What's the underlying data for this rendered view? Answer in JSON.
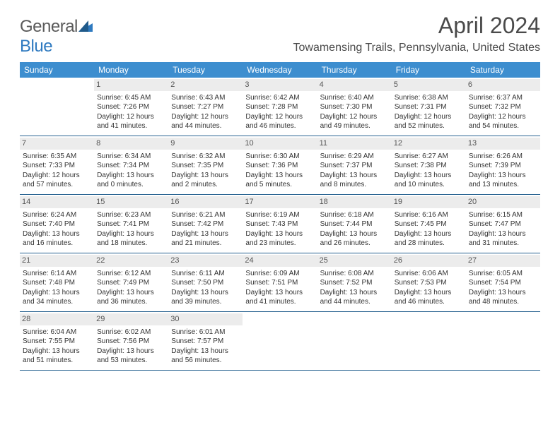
{
  "brand": {
    "word1": "General",
    "word2": "Blue"
  },
  "title": "April 2024",
  "location": "Towamensing Trails, Pennsylvania, United States",
  "colors": {
    "header_bg": "#3d8ecf",
    "header_text": "#ffffff",
    "row_divider": "#24608f",
    "daynum_bg": "#ececec",
    "text": "#333333",
    "brand_blue": "#2f7ac0"
  },
  "weekdays": [
    "Sunday",
    "Monday",
    "Tuesday",
    "Wednesday",
    "Thursday",
    "Friday",
    "Saturday"
  ],
  "weeks": [
    [
      {
        "n": "",
        "sr": "",
        "ss": "",
        "dl": ""
      },
      {
        "n": "1",
        "sr": "Sunrise: 6:45 AM",
        "ss": "Sunset: 7:26 PM",
        "dl": "Daylight: 12 hours and 41 minutes."
      },
      {
        "n": "2",
        "sr": "Sunrise: 6:43 AM",
        "ss": "Sunset: 7:27 PM",
        "dl": "Daylight: 12 hours and 44 minutes."
      },
      {
        "n": "3",
        "sr": "Sunrise: 6:42 AM",
        "ss": "Sunset: 7:28 PM",
        "dl": "Daylight: 12 hours and 46 minutes."
      },
      {
        "n": "4",
        "sr": "Sunrise: 6:40 AM",
        "ss": "Sunset: 7:30 PM",
        "dl": "Daylight: 12 hours and 49 minutes."
      },
      {
        "n": "5",
        "sr": "Sunrise: 6:38 AM",
        "ss": "Sunset: 7:31 PM",
        "dl": "Daylight: 12 hours and 52 minutes."
      },
      {
        "n": "6",
        "sr": "Sunrise: 6:37 AM",
        "ss": "Sunset: 7:32 PM",
        "dl": "Daylight: 12 hours and 54 minutes."
      }
    ],
    [
      {
        "n": "7",
        "sr": "Sunrise: 6:35 AM",
        "ss": "Sunset: 7:33 PM",
        "dl": "Daylight: 12 hours and 57 minutes."
      },
      {
        "n": "8",
        "sr": "Sunrise: 6:34 AM",
        "ss": "Sunset: 7:34 PM",
        "dl": "Daylight: 13 hours and 0 minutes."
      },
      {
        "n": "9",
        "sr": "Sunrise: 6:32 AM",
        "ss": "Sunset: 7:35 PM",
        "dl": "Daylight: 13 hours and 2 minutes."
      },
      {
        "n": "10",
        "sr": "Sunrise: 6:30 AM",
        "ss": "Sunset: 7:36 PM",
        "dl": "Daylight: 13 hours and 5 minutes."
      },
      {
        "n": "11",
        "sr": "Sunrise: 6:29 AM",
        "ss": "Sunset: 7:37 PM",
        "dl": "Daylight: 13 hours and 8 minutes."
      },
      {
        "n": "12",
        "sr": "Sunrise: 6:27 AM",
        "ss": "Sunset: 7:38 PM",
        "dl": "Daylight: 13 hours and 10 minutes."
      },
      {
        "n": "13",
        "sr": "Sunrise: 6:26 AM",
        "ss": "Sunset: 7:39 PM",
        "dl": "Daylight: 13 hours and 13 minutes."
      }
    ],
    [
      {
        "n": "14",
        "sr": "Sunrise: 6:24 AM",
        "ss": "Sunset: 7:40 PM",
        "dl": "Daylight: 13 hours and 16 minutes."
      },
      {
        "n": "15",
        "sr": "Sunrise: 6:23 AM",
        "ss": "Sunset: 7:41 PM",
        "dl": "Daylight: 13 hours and 18 minutes."
      },
      {
        "n": "16",
        "sr": "Sunrise: 6:21 AM",
        "ss": "Sunset: 7:42 PM",
        "dl": "Daylight: 13 hours and 21 minutes."
      },
      {
        "n": "17",
        "sr": "Sunrise: 6:19 AM",
        "ss": "Sunset: 7:43 PM",
        "dl": "Daylight: 13 hours and 23 minutes."
      },
      {
        "n": "18",
        "sr": "Sunrise: 6:18 AM",
        "ss": "Sunset: 7:44 PM",
        "dl": "Daylight: 13 hours and 26 minutes."
      },
      {
        "n": "19",
        "sr": "Sunrise: 6:16 AM",
        "ss": "Sunset: 7:45 PM",
        "dl": "Daylight: 13 hours and 28 minutes."
      },
      {
        "n": "20",
        "sr": "Sunrise: 6:15 AM",
        "ss": "Sunset: 7:47 PM",
        "dl": "Daylight: 13 hours and 31 minutes."
      }
    ],
    [
      {
        "n": "21",
        "sr": "Sunrise: 6:14 AM",
        "ss": "Sunset: 7:48 PM",
        "dl": "Daylight: 13 hours and 34 minutes."
      },
      {
        "n": "22",
        "sr": "Sunrise: 6:12 AM",
        "ss": "Sunset: 7:49 PM",
        "dl": "Daylight: 13 hours and 36 minutes."
      },
      {
        "n": "23",
        "sr": "Sunrise: 6:11 AM",
        "ss": "Sunset: 7:50 PM",
        "dl": "Daylight: 13 hours and 39 minutes."
      },
      {
        "n": "24",
        "sr": "Sunrise: 6:09 AM",
        "ss": "Sunset: 7:51 PM",
        "dl": "Daylight: 13 hours and 41 minutes."
      },
      {
        "n": "25",
        "sr": "Sunrise: 6:08 AM",
        "ss": "Sunset: 7:52 PM",
        "dl": "Daylight: 13 hours and 44 minutes."
      },
      {
        "n": "26",
        "sr": "Sunrise: 6:06 AM",
        "ss": "Sunset: 7:53 PM",
        "dl": "Daylight: 13 hours and 46 minutes."
      },
      {
        "n": "27",
        "sr": "Sunrise: 6:05 AM",
        "ss": "Sunset: 7:54 PM",
        "dl": "Daylight: 13 hours and 48 minutes."
      }
    ],
    [
      {
        "n": "28",
        "sr": "Sunrise: 6:04 AM",
        "ss": "Sunset: 7:55 PM",
        "dl": "Daylight: 13 hours and 51 minutes."
      },
      {
        "n": "29",
        "sr": "Sunrise: 6:02 AM",
        "ss": "Sunset: 7:56 PM",
        "dl": "Daylight: 13 hours and 53 minutes."
      },
      {
        "n": "30",
        "sr": "Sunrise: 6:01 AM",
        "ss": "Sunset: 7:57 PM",
        "dl": "Daylight: 13 hours and 56 minutes."
      },
      {
        "n": "",
        "sr": "",
        "ss": "",
        "dl": ""
      },
      {
        "n": "",
        "sr": "",
        "ss": "",
        "dl": ""
      },
      {
        "n": "",
        "sr": "",
        "ss": "",
        "dl": ""
      },
      {
        "n": "",
        "sr": "",
        "ss": "",
        "dl": ""
      }
    ]
  ]
}
